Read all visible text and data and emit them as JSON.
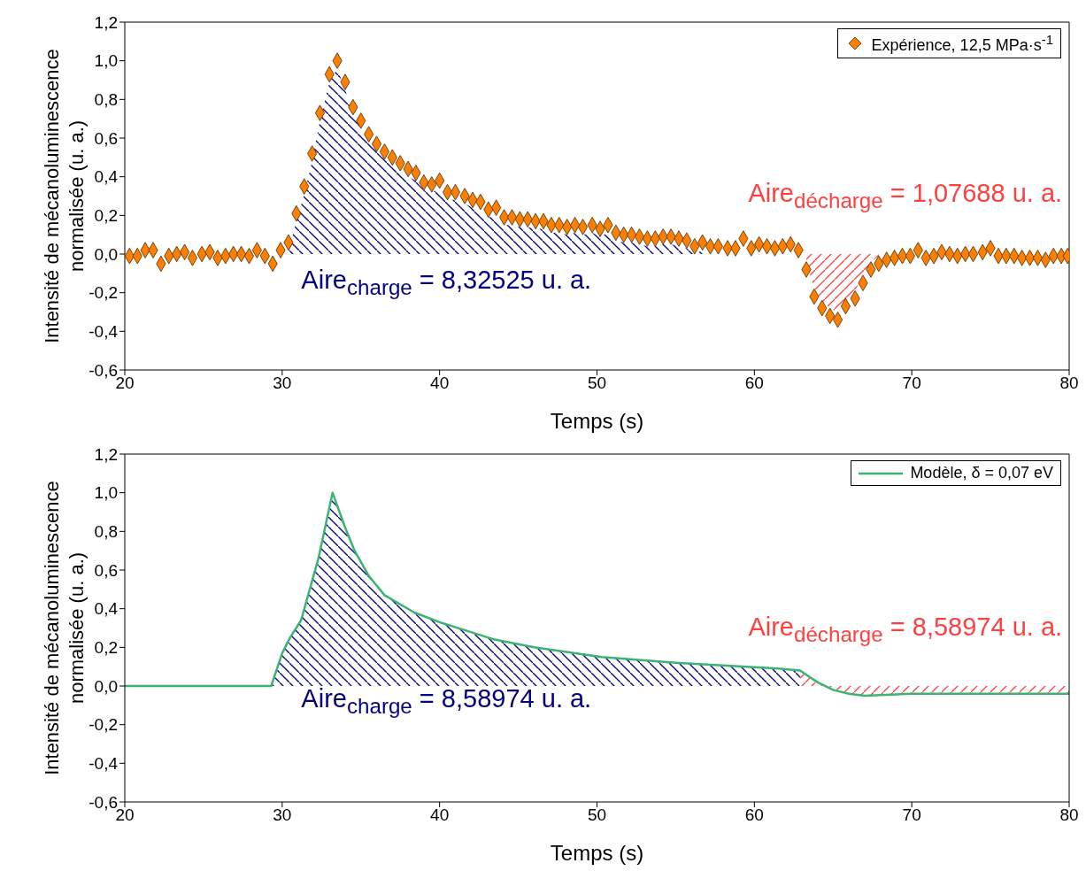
{
  "chart_data": [
    {
      "type": "scatter",
      "xlabel": "Temps (s)",
      "ylabel": "Intensité de mécanoluminescence\nnormalisée (u. a.)",
      "legend": "top right",
      "xlim": [
        20,
        80
      ],
      "xticks": [
        20,
        30,
        40,
        50,
        60,
        70,
        80
      ],
      "ylim": [
        -0.6,
        1.2
      ],
      "yticks": [
        {
          "value": -0.6,
          "label": "-0,6"
        },
        {
          "value": -0.4,
          "label": "-0,4"
        },
        {
          "value": -0.2,
          "label": "-0,2"
        },
        {
          "value": 0,
          "label": "0,0"
        },
        {
          "value": 0.2,
          "label": "0,2"
        },
        {
          "value": 0.4,
          "label": "0,4"
        },
        {
          "value": 0.6,
          "label": "0,6"
        },
        {
          "value": 0.8,
          "label": "0,8"
        },
        {
          "value": 1.0,
          "label": "1,0"
        },
        {
          "value": 1.2,
          "label": "1,2"
        }
      ],
      "annotations": [
        "Aire$_{charge}$ = 8,32525 u. a.",
        "Aire$_{décharge}$ = 1,07688 u. a."
      ],
      "series": [
        {
          "name": "Expérience, 12,5 MPa·s$^{-1}$",
          "marker": "diamond",
          "color": "#ff8000",
          "x": [
            20.3,
            20.8,
            21.3,
            21.8,
            22.3,
            22.8,
            23.3,
            23.8,
            24.3,
            24.9,
            25.4,
            25.9,
            26.4,
            26.9,
            27.4,
            27.9,
            28.4,
            28.9,
            29.4,
            29.9,
            30.4,
            30.9,
            31.4,
            31.9,
            32.4,
            33.0,
            33.5,
            34.0,
            34.5,
            35.0,
            35.5,
            36.0,
            36.5,
            37.0,
            37.5,
            38.0,
            38.5,
            39.0,
            39.5,
            40.0,
            40.5,
            41.0,
            41.6,
            42.1,
            42.6,
            43.1,
            43.6,
            44.1,
            44.6,
            45.1,
            45.6,
            46.1,
            46.6,
            47.1,
            47.6,
            48.1,
            48.6,
            49.1,
            49.7,
            50.2,
            50.7,
            51.2,
            51.7,
            52.2,
            52.7,
            53.2,
            53.7,
            54.2,
            54.7,
            55.2,
            55.7,
            56.2,
            56.7,
            57.2,
            57.7,
            58.3,
            58.8,
            59.3,
            59.8,
            60.3,
            60.8,
            61.3,
            61.8,
            62.3,
            62.8,
            63.3,
            63.8,
            64.3,
            64.8,
            65.3,
            65.8,
            66.4,
            66.9,
            67.4,
            67.9,
            68.4,
            68.9,
            69.4,
            69.9,
            70.4,
            70.9,
            71.4,
            71.9,
            72.4,
            72.9,
            73.4,
            73.9,
            74.5,
            75.0,
            75.5,
            76.0,
            76.5,
            77.0,
            77.5,
            78.0,
            78.5,
            79.0,
            79.5,
            79.9
          ],
          "values": [
            -0.01,
            -0.01,
            0.02,
            0.02,
            -0.05,
            -0.01,
            0.0,
            0.01,
            -0.02,
            0.0,
            0.01,
            -0.02,
            -0.01,
            0.0,
            0.0,
            -0.01,
            0.02,
            -0.01,
            -0.05,
            0.02,
            0.06,
            0.21,
            0.35,
            0.52,
            0.73,
            0.93,
            1.0,
            0.89,
            0.76,
            0.69,
            0.62,
            0.57,
            0.53,
            0.5,
            0.47,
            0.44,
            0.42,
            0.37,
            0.36,
            0.38,
            0.32,
            0.32,
            0.3,
            0.28,
            0.27,
            0.23,
            0.24,
            0.19,
            0.19,
            0.18,
            0.18,
            0.17,
            0.17,
            0.15,
            0.15,
            0.14,
            0.15,
            0.14,
            0.15,
            0.13,
            0.15,
            0.11,
            0.1,
            0.1,
            0.09,
            0.08,
            0.08,
            0.09,
            0.09,
            0.08,
            0.07,
            0.04,
            0.06,
            0.04,
            0.04,
            0.03,
            0.03,
            0.08,
            0.03,
            0.05,
            0.04,
            0.03,
            0.04,
            0.05,
            0.02,
            -0.08,
            -0.22,
            -0.28,
            -0.32,
            -0.34,
            -0.27,
            -0.23,
            -0.15,
            -0.08,
            -0.05,
            -0.03,
            -0.02,
            -0.01,
            -0.01,
            0.02,
            -0.02,
            -0.01,
            0.01,
            0.0,
            -0.01,
            0.0,
            0.0,
            0.01,
            0.03,
            -0.01,
            -0.01,
            -0.01,
            -0.02,
            -0.02,
            -0.02,
            -0.03,
            -0.01,
            -0.01,
            -0.01
          ]
        },
        {
          "type": "area",
          "color": "#000080",
          "x": [
            30.4,
            30.9,
            31.4,
            31.9,
            32.4,
            33.0,
            33.5,
            34.0,
            34.5,
            35.0,
            35.5,
            36.0,
            36.5,
            37.0,
            37.5,
            38.0,
            38.5,
            39.0,
            39.5,
            40.0,
            40.5,
            41.0,
            41.6,
            42.1,
            42.6,
            43.1,
            43.6,
            44.1,
            44.6,
            45.1,
            45.6,
            46.1,
            46.6,
            47.1,
            47.6,
            48.1,
            48.6,
            49.1,
            49.7,
            50.2,
            50.7,
            51.2,
            51.7,
            52.2,
            52.7,
            53.2,
            53.7,
            54.2,
            54.7,
            55.2,
            55.7,
            56.2,
            56.7,
            57.2,
            57.7,
            58.3,
            58.8
          ],
          "values": [
            0.02,
            0.17,
            0.31,
            0.48,
            0.69,
            0.89,
            0.96,
            0.85,
            0.72,
            0.65,
            0.58,
            0.53,
            0.49,
            0.46,
            0.43,
            0.4,
            0.38,
            0.33,
            0.32,
            0.34,
            0.28,
            0.28,
            0.26,
            0.24,
            0.23,
            0.19,
            0.2,
            0.15,
            0.15,
            0.14,
            0.14,
            0.13,
            0.13,
            0.11,
            0.11,
            0.1,
            0.11,
            0.1,
            0.11,
            0.09,
            0.11,
            0.07,
            0.06,
            0.06,
            0.05,
            0.04,
            0.04,
            0.05,
            0.05,
            0.04,
            0.03,
            0.0,
            0.02,
            0.0,
            0.0,
            0.0,
            0.0
          ]
        },
        {
          "type": "area",
          "color": "#ff4040",
          "x": [
            63.3,
            63.8,
            64.3,
            64.8,
            65.3,
            65.8,
            66.4,
            66.9,
            67.4,
            67.9
          ],
          "values": [
            -0.04,
            -0.18,
            -0.24,
            -0.28,
            -0.3,
            -0.23,
            -0.19,
            -0.11,
            -0.04,
            -0.01
          ]
        }
      ]
    },
    {
      "type": "line",
      "xlabel": "Temps (s)",
      "ylabel": "Intensité de mécanoluminescence\nnormalisée (u. a.)",
      "legend": "top right",
      "xlim": [
        20,
        80
      ],
      "xticks": [
        20,
        30,
        40,
        50,
        60,
        70,
        80
      ],
      "ylim": [
        -0.6,
        1.2
      ],
      "yticks": [
        {
          "value": -0.6,
          "label": "-0,6"
        },
        {
          "value": -0.4,
          "label": "-0,4"
        },
        {
          "value": -0.2,
          "label": "-0,2"
        },
        {
          "value": 0,
          "label": "0,0"
        },
        {
          "value": 0.2,
          "label": "0,2"
        },
        {
          "value": 0.4,
          "label": "0,4"
        },
        {
          "value": 0.6,
          "label": "0,6"
        },
        {
          "value": 0.8,
          "label": "0,8"
        },
        {
          "value": 1.0,
          "label": "1,0"
        },
        {
          "value": 1.2,
          "label": "1,2"
        }
      ],
      "annotations": [
        "Aire$_{charge}$ = 8,58974 u. a.",
        "Aire$_{décharge}$ = 8,58974 u. a."
      ],
      "series": [
        {
          "name": "Modèle, δ = 0,07 eV",
          "line_style": "solid",
          "color": "#3cb371",
          "x": [
            20,
            29.3,
            30,
            30.5,
            31.2,
            32.3,
            33.2,
            34,
            34.6,
            35.5,
            36.5,
            38.4,
            40,
            43.5,
            46,
            50.3,
            55,
            61.5,
            62.9,
            64,
            65,
            66,
            67,
            70,
            80
          ],
          "values": [
            0,
            0,
            0.17,
            0.25,
            0.34,
            0.66,
            1.0,
            0.82,
            0.7,
            0.57,
            0.47,
            0.38,
            0.33,
            0.24,
            0.2,
            0.15,
            0.12,
            0.09,
            0.08,
            0.02,
            -0.02,
            -0.04,
            -0.05,
            -0.04,
            -0.04
          ]
        },
        {
          "type": "area",
          "color": "#000080",
          "x": [
            29.3,
            30,
            30.5,
            31.2,
            32.3,
            33.2,
            34,
            34.6,
            35.5,
            36.5,
            38.4,
            40,
            43.5,
            46,
            50.3,
            55,
            61.5,
            62.9
          ],
          "values": [
            0,
            0.17,
            0.25,
            0.34,
            0.66,
            1.0,
            0.82,
            0.7,
            0.57,
            0.47,
            0.38,
            0.33,
            0.24,
            0.2,
            0.15,
            0.12,
            0.09,
            0.08
          ]
        },
        {
          "type": "area",
          "color": "#ff4040",
          "x": [
            62.9,
            64,
            65,
            66,
            67,
            70,
            80
          ],
          "values": [
            0.08,
            0.02,
            -0.02,
            -0.04,
            -0.05,
            -0.04,
            -0.04
          ]
        }
      ]
    }
  ]
}
